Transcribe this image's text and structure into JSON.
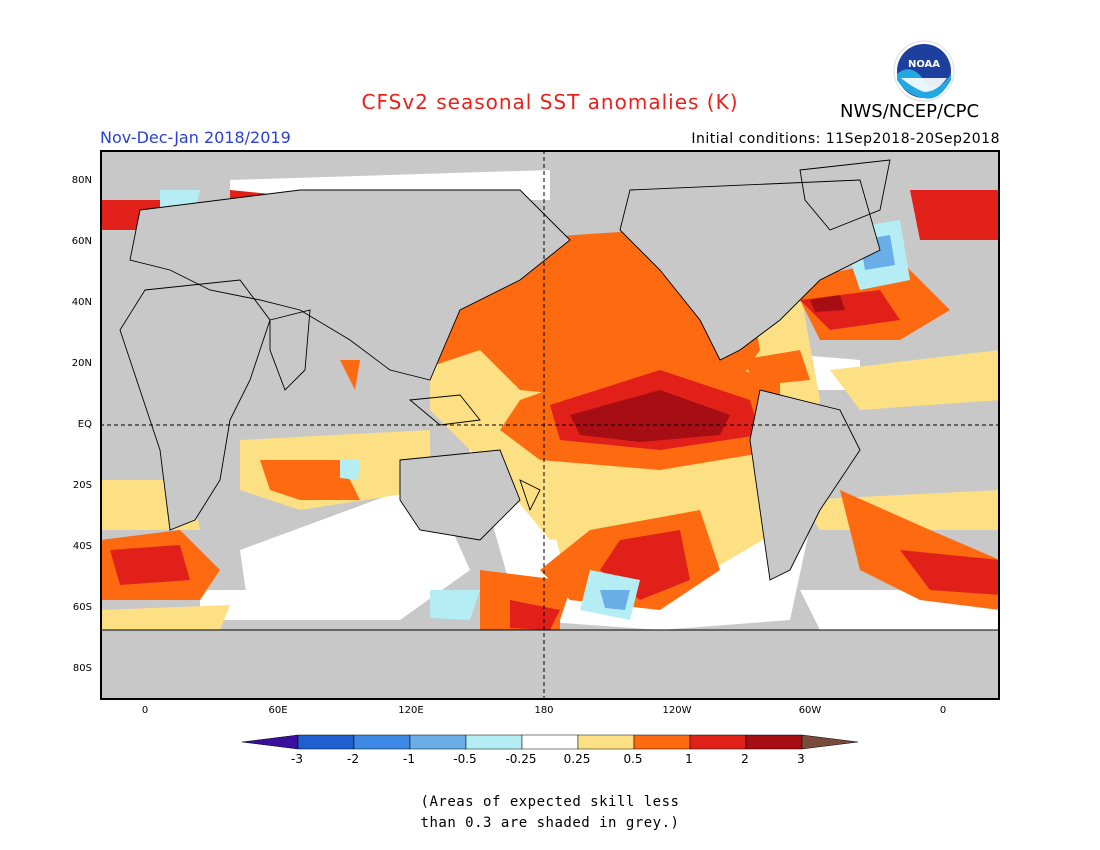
{
  "title": "CFSv2 seasonal SST anomalies (K)",
  "agency": "NWS/NCEP/CPC",
  "logo_text": "NOAA",
  "season": "Nov-Dec-Jan 2018/2019",
  "initial_conditions": "Initial conditions: 11Sep2018-20Sep2018",
  "map": {
    "projection": "cylindrical equidistant",
    "lon_range": [
      -20,
      20
    ],
    "lat_range": [
      -90,
      90
    ],
    "latitude_labels": [
      "80N",
      "60N",
      "40N",
      "20N",
      "EQ",
      "20S",
      "40S",
      "60S",
      "80S"
    ],
    "longitude_labels": [
      "0",
      "60E",
      "120E",
      "180",
      "120W",
      "60W",
      "0"
    ],
    "land_color": "#c8c8c8",
    "reference_lines": [
      "EQ",
      "180"
    ]
  },
  "colorbar": {
    "labels": [
      "-3",
      "-2",
      "-1",
      "-0.5",
      "-0.25",
      "0.25",
      "0.5",
      "1",
      "2",
      "3"
    ],
    "colors": [
      "#3a0f9e",
      "#1f5fd0",
      "#3c8ae6",
      "#6aaee8",
      "#b4eef4",
      "#ffffff",
      "#fde083",
      "#fd6a10",
      "#e2201a",
      "#a60e14",
      "#7a4a3a"
    ]
  },
  "note": [
    "(Areas of expected skill less",
    "than 0.3 are shaded in grey.)"
  ],
  "anomaly_colors": {
    "grey": "#c8c8c8",
    "white": "#ffffff",
    "yellow": "#fde083",
    "orange": "#fd6a10",
    "red": "#e2201a",
    "darkred": "#a60e14",
    "lightblue": "#b4eef4",
    "blue": "#6aaee8",
    "midblue": "#3c8ae6",
    "darkblue": "#1f5fd0"
  }
}
